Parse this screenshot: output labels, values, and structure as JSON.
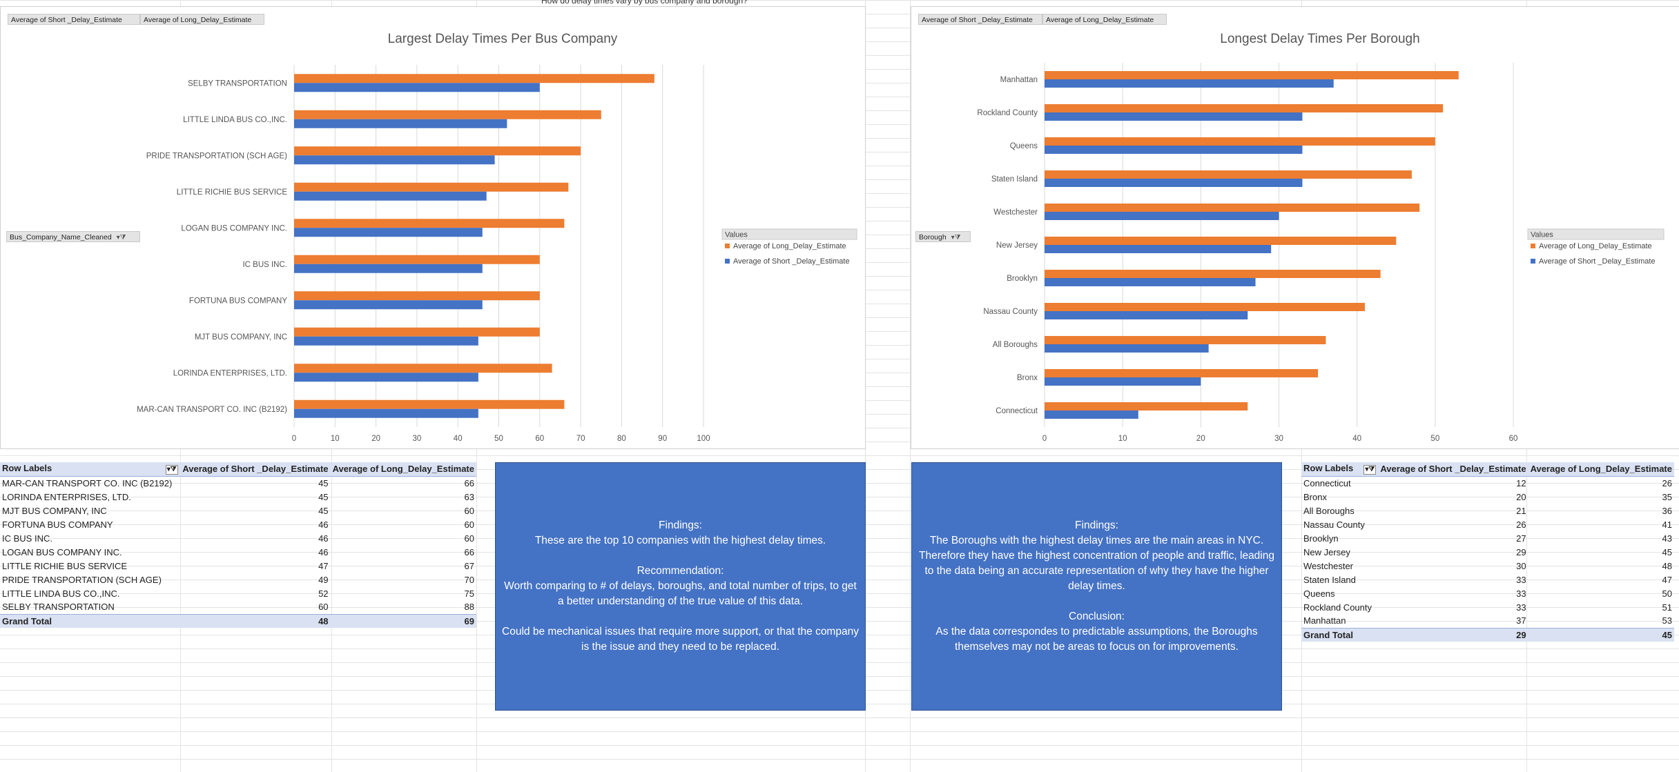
{
  "sheet": {
    "question_cell": "How do delay times vary by bus company and borough?"
  },
  "colors": {
    "long": "#ed7d31",
    "short": "#4472c4",
    "box": "#4472c4"
  },
  "chart_left": {
    "field_buttons": [
      "Average of Short _Delay_Estimate",
      "Average of Long_Delay_Estimate"
    ],
    "axis_field": "Bus_Company_Name_Cleaned",
    "legend_title": "Values",
    "legend": [
      "Average of Long_Delay_Estimate",
      "Average of Short _Delay_Estimate"
    ],
    "chart_data": {
      "type": "bar",
      "orientation": "horizontal",
      "title": "Largest Delay Times Per Bus Company",
      "categories": [
        "SELBY TRANSPORTATION",
        "LITTLE LINDA BUS CO.,INC.",
        "PRIDE TRANSPORTATION (SCH AGE)",
        "LITTLE RICHIE BUS SERVICE",
        "LOGAN BUS COMPANY INC.",
        "IC BUS INC.",
        "FORTUNA BUS COMPANY",
        "MJT BUS COMPANY, INC",
        "LORINDA ENTERPRISES, LTD.",
        "MAR-CAN TRANSPORT CO. INC (B2192)"
      ],
      "series": [
        {
          "name": "Average of Long_Delay_Estimate",
          "values": [
            88,
            75,
            70,
            67,
            66,
            60,
            60,
            60,
            63,
            66
          ]
        },
        {
          "name": "Average of Short _Delay_Estimate",
          "values": [
            60,
            52,
            49,
            47,
            46,
            46,
            46,
            45,
            45,
            45
          ]
        }
      ],
      "xlim": [
        0,
        100
      ],
      "ticks": [
        "0",
        "10",
        "20",
        "30",
        "40",
        "50",
        "60",
        "70",
        "80",
        "90",
        "100"
      ],
      "grid": true,
      "legend_position": "right"
    }
  },
  "chart_right": {
    "field_buttons": [
      "Average of Short _Delay_Estimate",
      "Average of Long_Delay_Estimate"
    ],
    "axis_field": "Borough",
    "legend_title": "Values",
    "legend": [
      "Average of Long_Delay_Estimate",
      "Average of Short _Delay_Estimate"
    ],
    "chart_data": {
      "type": "bar",
      "orientation": "horizontal",
      "title": "Longest Delay Times Per Borough",
      "categories": [
        "Manhattan",
        "Rockland County",
        "Queens",
        "Staten Island",
        "Westchester",
        "New Jersey",
        "Brooklyn",
        "Nassau County",
        "All Boroughs",
        "Bronx",
        "Connecticut"
      ],
      "series": [
        {
          "name": "Average of Long_Delay_Estimate",
          "values": [
            53,
            51,
            50,
            47,
            48,
            45,
            43,
            41,
            36,
            35,
            26
          ]
        },
        {
          "name": "Average of Short _Delay_Estimate",
          "values": [
            37,
            33,
            33,
            33,
            30,
            29,
            27,
            26,
            21,
            20,
            12
          ]
        }
      ],
      "xlim": [
        0,
        60
      ],
      "ticks": [
        "0",
        "10",
        "20",
        "30",
        "40",
        "50",
        "60"
      ],
      "grid": true,
      "legend_position": "right"
    }
  },
  "table_left": {
    "headers": [
      "Row Labels",
      "Average of Short _Delay_Estimate",
      "Average of Long_Delay_Estimate"
    ],
    "rows": [
      [
        "MAR-CAN TRANSPORT CO. INC (B2192)",
        "45",
        "66"
      ],
      [
        "LORINDA ENTERPRISES, LTD.",
        "45",
        "63"
      ],
      [
        "MJT BUS COMPANY, INC",
        "45",
        "60"
      ],
      [
        "FORTUNA BUS COMPANY",
        "46",
        "60"
      ],
      [
        "IC BUS INC.",
        "46",
        "60"
      ],
      [
        "LOGAN BUS COMPANY INC.",
        "46",
        "66"
      ],
      [
        "LITTLE RICHIE BUS SERVICE",
        "47",
        "67"
      ],
      [
        "PRIDE TRANSPORTATION (SCH AGE)",
        "49",
        "70"
      ],
      [
        "LITTLE LINDA BUS CO.,INC.",
        "52",
        "75"
      ],
      [
        "SELBY TRANSPORTATION",
        "60",
        "88"
      ]
    ],
    "total": [
      "Grand Total",
      "48",
      "69"
    ]
  },
  "table_right": {
    "headers": [
      "Row Labels",
      "Average of Short _Delay_Estimate",
      "Average of Long_Delay_Estimate"
    ],
    "rows": [
      [
        "Connecticut",
        "12",
        "26"
      ],
      [
        "Bronx",
        "20",
        "35"
      ],
      [
        "All Boroughs",
        "21",
        "36"
      ],
      [
        "Nassau County",
        "26",
        "41"
      ],
      [
        "Brooklyn",
        "27",
        "43"
      ],
      [
        "New Jersey",
        "29",
        "45"
      ],
      [
        "Westchester",
        "30",
        "48"
      ],
      [
        "Staten Island",
        "33",
        "47"
      ],
      [
        "Queens",
        "33",
        "50"
      ],
      [
        "Rockland County",
        "33",
        "51"
      ],
      [
        "Manhattan",
        "37",
        "53"
      ]
    ],
    "total": [
      "Grand Total",
      "29",
      "45"
    ]
  },
  "findings_left": {
    "text": "Findings:\nThese are the top 10 companies with the highest delay times.\n\nRecommendation:\nWorth comparing to # of delays, boroughs, and total number of trips, to get a better understanding of the true value of this data.\n\nCould be mechanical issues that require more support, or that the company is the issue and they need to be replaced."
  },
  "findings_right": {
    "text": "Findings:\nThe Boroughs with the highest delay times are the main areas in NYC. Therefore they have the highest concentration of people and traffic, leading to the data being an accurate representation of why they have the higher delay times.\n\nConclusion:\nAs the data correspondes to predictable assumptions, the Boroughs themselves may not be areas to focus on for improvements."
  }
}
